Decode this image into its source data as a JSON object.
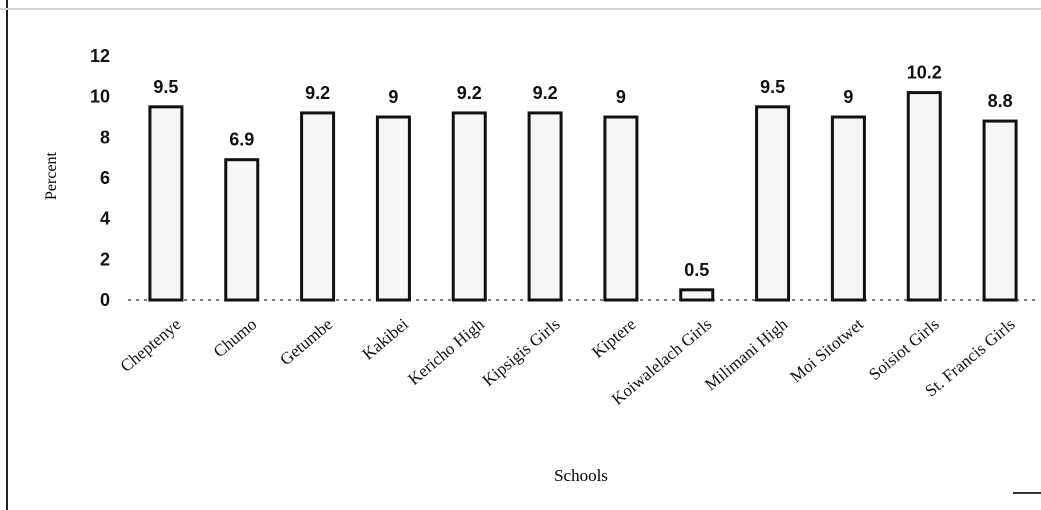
{
  "chart_data": {
    "type": "bar",
    "categories": [
      "Cheptenye",
      "Chumo",
      "Getumbe",
      "Kakibei",
      "Kericho High",
      "Kipsigis Girls",
      "Kiptere",
      "Koiwalelach Girls",
      "Milimani High",
      "Moi Sitotwet",
      "Soisiot Girls",
      "St. Francis Girls"
    ],
    "values": [
      9.5,
      6.9,
      9.2,
      9,
      9.2,
      9.2,
      9,
      0.5,
      9.5,
      9,
      10.2,
      8.8
    ],
    "data_labels": [
      "9.5",
      "6.9",
      "9.2",
      "9",
      "9.2",
      "9.2",
      "9",
      "0.5",
      "9.5",
      "9",
      "10.2",
      "8.8"
    ],
    "xlabel": "Schools",
    "ylabel": "Percent",
    "ylim": [
      0,
      12
    ],
    "yticks": [
      0,
      2,
      4,
      6,
      8,
      10,
      12
    ],
    "grid": false,
    "legend": "none",
    "colors": {
      "bar_fill": "#f6f6f6",
      "bar_stroke": "#111111",
      "axis": "#555555",
      "text": "#111111"
    }
  }
}
